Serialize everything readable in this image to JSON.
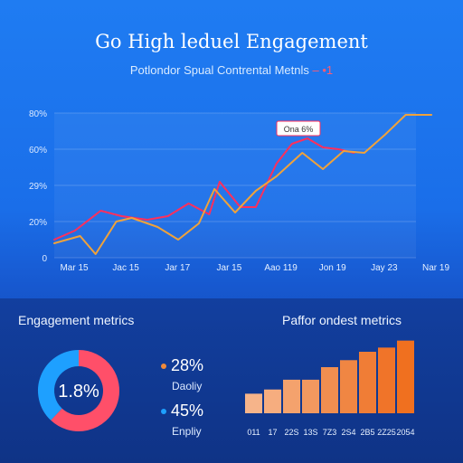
{
  "header": {
    "title": "Go High leduel Engagement",
    "subtitle": "Potlondor Spual Contrental Metnls",
    "subtitle_mark": "– •1"
  },
  "chart_data": [
    {
      "type": "line",
      "title": "",
      "x": [
        "Mar 15",
        "Jac 15",
        "Jar 17",
        "Jar 15",
        "Aao 119",
        "Jon 19",
        "Jay 23",
        "Nar 19"
      ],
      "y_ticks": [
        "0",
        "20%",
        "29%",
        "60%",
        "80%"
      ],
      "ylim": [
        0,
        80
      ],
      "grid": true,
      "annotation": "Ona 6%",
      "series": [
        {
          "color": "#ff2f5c",
          "values": [
            [
              0,
              10
            ],
            [
              0.4,
              15
            ],
            [
              0.9,
              26
            ],
            [
              1.3,
              23
            ],
            [
              1.8,
              21
            ],
            [
              2.2,
              23
            ],
            [
              2.6,
              30
            ],
            [
              3.0,
              24
            ],
            [
              3.2,
              42
            ],
            [
              3.6,
              28
            ],
            [
              3.9,
              28
            ],
            [
              4.3,
              52
            ],
            [
              4.6,
              63
            ],
            [
              4.9,
              66
            ],
            [
              5.2,
              61
            ],
            [
              5.5,
              60
            ],
            [
              5.8,
              58
            ]
          ]
        },
        {
          "color": "#f0a23a",
          "values": [
            [
              0,
              8
            ],
            [
              0.5,
              12
            ],
            [
              0.8,
              2
            ],
            [
              1.2,
              20
            ],
            [
              1.5,
              22
            ],
            [
              2.0,
              17
            ],
            [
              2.4,
              10
            ],
            [
              2.8,
              19
            ],
            [
              3.1,
              38
            ],
            [
              3.5,
              25
            ],
            [
              3.9,
              37
            ],
            [
              4.3,
              45
            ],
            [
              4.8,
              58
            ],
            [
              5.2,
              49
            ],
            [
              5.6,
              59
            ],
            [
              6.0,
              58
            ],
            [
              6.4,
              68
            ],
            [
              6.8,
              79
            ],
            [
              7.3,
              79
            ]
          ]
        }
      ]
    },
    {
      "type": "pie",
      "title": "Engagement metrics",
      "center_label": "1.8%",
      "slices": [
        {
          "value": 62,
          "color": "#ff4f69"
        },
        {
          "value": 38,
          "color": "#1ea0ff"
        }
      ]
    },
    {
      "type": "bar",
      "title": "Paffor ondest metrics",
      "categories": [
        "011",
        "17",
        "22S",
        "13S",
        "7Z3",
        "2S4",
        "2B5",
        "2Z25",
        "2054"
      ],
      "values": [
        14,
        17,
        24,
        24,
        33,
        38,
        44,
        47,
        52
      ],
      "ylim": [
        0,
        55
      ],
      "colors": [
        "#f6b48a",
        "#f6ad7f",
        "#f4a26d",
        "#f2985f",
        "#f08e50",
        "#f08643",
        "#f07d36",
        "#f07429",
        "#f0701f"
      ]
    }
  ],
  "kpis": [
    {
      "value": "28%",
      "label": "Daoliy",
      "dot_color": "#f08a3a"
    },
    {
      "value": "45%",
      "label": "Enpliy",
      "dot_color": "#1ea0ff"
    }
  ]
}
